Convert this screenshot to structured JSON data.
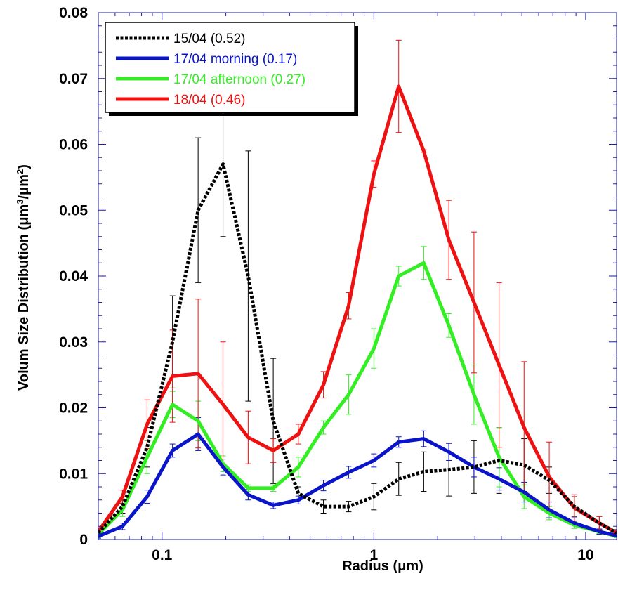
{
  "chart_data": {
    "type": "line",
    "title": "",
    "xlabel": "Radius (μm)",
    "ylabel": "Volum Size Distribution (μm³/μm²)",
    "ylabel_parts": {
      "main": "Volum Size Distribution (",
      "unit1": "μm",
      "sup1": "3",
      "slash": "/",
      "unit2": "μm",
      "sup2": "2",
      "close": ")"
    },
    "xscale": "log",
    "xlim": [
      0.05,
      14
    ],
    "ylim": [
      0,
      0.08
    ],
    "y_ticks": [
      0,
      0.01,
      0.02,
      0.03,
      0.04,
      0.05,
      0.06,
      0.07,
      0.08
    ],
    "y_tick_labels": [
      "0",
      "0.01",
      "0.02",
      "0.03",
      "0.04",
      "0.05",
      "0.06",
      "0.07",
      "0.08"
    ],
    "x_ticks": [
      0.1,
      1,
      10
    ],
    "x_tick_labels": [
      "0.1",
      "1",
      "10"
    ],
    "legend_position": "top-left",
    "grid": false,
    "series": [
      {
        "name": "15/04 (0.52)",
        "color": "#000000",
        "dashed": true,
        "x": [
          0.05,
          0.065,
          0.085,
          0.112,
          0.148,
          0.194,
          0.255,
          0.335,
          0.44,
          0.578,
          0.76,
          1.0,
          1.31,
          1.72,
          2.26,
          2.97,
          3.9,
          5.12,
          6.73,
          8.84,
          11.6,
          14
        ],
        "y": [
          0.001,
          0.005,
          0.014,
          0.03,
          0.05,
          0.057,
          0.04,
          0.018,
          0.007,
          0.005,
          0.005,
          0.0065,
          0.0092,
          0.0103,
          0.0106,
          0.011,
          0.012,
          0.0113,
          0.009,
          0.005,
          0.0025,
          0.001
        ],
        "err": [
          0.0005,
          0.001,
          0.003,
          0.007,
          0.011,
          0.011,
          0.019,
          0.0095,
          0.001,
          0.001,
          0.0008,
          0.002,
          0.0025,
          0.003,
          0.004,
          0.004,
          0.005,
          0.004,
          0.002,
          0.0015,
          0.001,
          0.0005
        ]
      },
      {
        "name": "17/04 morning (0.17)",
        "color": "#0a14c8",
        "dashed": false,
        "x": [
          0.05,
          0.065,
          0.085,
          0.112,
          0.148,
          0.194,
          0.255,
          0.335,
          0.44,
          0.578,
          0.76,
          1.0,
          1.31,
          1.72,
          2.26,
          2.97,
          3.9,
          5.12,
          6.73,
          8.84,
          11.6,
          14
        ],
        "y": [
          0.0005,
          0.002,
          0.0065,
          0.0135,
          0.016,
          0.011,
          0.0068,
          0.0052,
          0.006,
          0.0082,
          0.0102,
          0.012,
          0.0148,
          0.0153,
          0.0133,
          0.011,
          0.0092,
          0.0072,
          0.0045,
          0.0025,
          0.0012,
          0.0006
        ],
        "err": [
          0.0003,
          0.0005,
          0.001,
          0.001,
          0.0025,
          0.0012,
          0.0008,
          0.0005,
          0.0006,
          0.0008,
          0.0009,
          0.001,
          0.0008,
          0.0012,
          0.0013,
          0.0015,
          0.0017,
          0.0015,
          0.0012,
          0.0008,
          0.0004,
          0.0003
        ]
      },
      {
        "name": "17/04 afternoon (0.27)",
        "color": "#33ee22",
        "dashed": false,
        "x": [
          0.05,
          0.065,
          0.085,
          0.112,
          0.148,
          0.194,
          0.255,
          0.335,
          0.44,
          0.578,
          0.76,
          1.0,
          1.31,
          1.72,
          2.26,
          2.97,
          3.9,
          5.12,
          6.73,
          8.84,
          11.6,
          14
        ],
        "y": [
          0.0008,
          0.0045,
          0.0125,
          0.0205,
          0.018,
          0.0115,
          0.0078,
          0.0078,
          0.011,
          0.017,
          0.022,
          0.029,
          0.04,
          0.042,
          0.0325,
          0.022,
          0.0125,
          0.0065,
          0.004,
          0.0022,
          0.0012,
          0.0005
        ],
        "err": [
          0.0005,
          0.001,
          0.0025,
          0.002,
          0.003,
          0.0012,
          0.0005,
          0.0005,
          0.0015,
          0.001,
          0.003,
          0.003,
          0.0015,
          0.0025,
          0.0018,
          0.0045,
          0.0045,
          0.0018,
          0.001,
          0.0005,
          0.0003,
          0.0002
        ]
      },
      {
        "name": "18/04 (0.46)",
        "color": "#ee1111",
        "dashed": false,
        "x": [
          0.05,
          0.065,
          0.085,
          0.112,
          0.148,
          0.194,
          0.255,
          0.335,
          0.44,
          0.578,
          0.76,
          1.0,
          1.31,
          1.72,
          2.26,
          2.97,
          3.9,
          5.12,
          6.73,
          8.84,
          11.6,
          14
        ],
        "y": [
          0.0012,
          0.0065,
          0.0175,
          0.0248,
          0.0252,
          0.0205,
          0.0155,
          0.0135,
          0.016,
          0.0235,
          0.0355,
          0.0555,
          0.0688,
          0.059,
          0.0455,
          0.036,
          0.0265,
          0.017,
          0.0095,
          0.0048,
          0.0025,
          0.001
        ],
        "err": [
          0.0005,
          0.001,
          0.0037,
          0.007,
          0.0113,
          0.0095,
          0.004,
          0.0018,
          0.0015,
          0.002,
          0.002,
          0.002,
          0.007,
          0.0002,
          0.006,
          0.0107,
          0.0125,
          0.01,
          0.0053,
          0.002,
          0.001,
          0.0004
        ]
      }
    ]
  }
}
